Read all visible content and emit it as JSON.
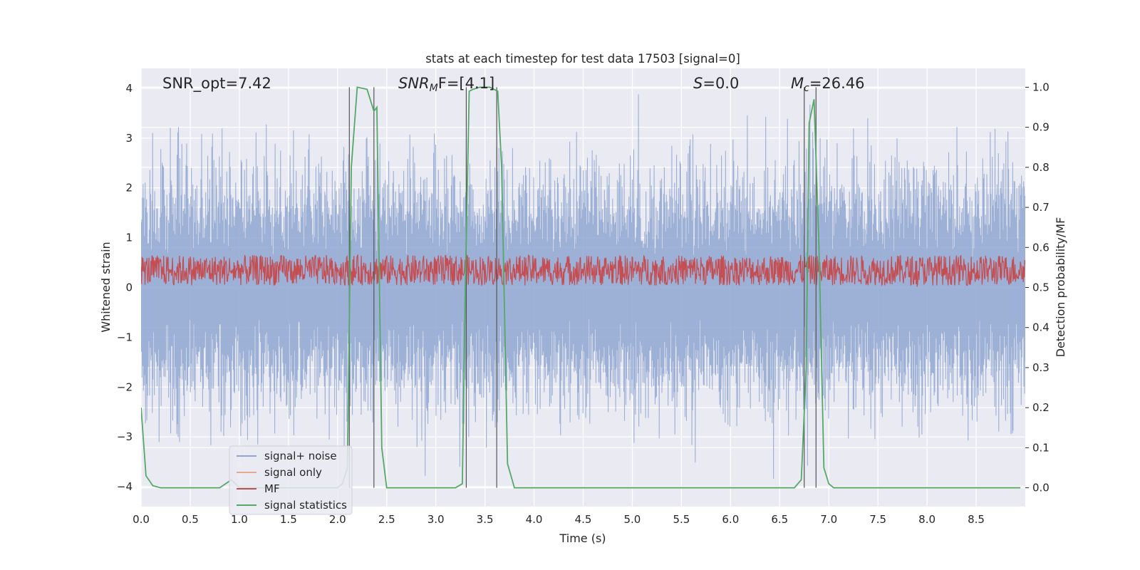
{
  "chart_data": {
    "type": "line",
    "title": "stats at each timestep for test data 17503 [signal=0]",
    "xlabel": "Time (s)",
    "ylabel": "Whitened strain",
    "ylabel_right": "Detection probability/MF",
    "xlim": [
      0,
      9
    ],
    "ylim": [
      -4.4,
      4.4
    ],
    "ylim_right": [
      -0.047,
      1.047
    ],
    "x_ticks": [
      "0.0",
      "0.5",
      "1.0",
      "1.5",
      "2.0",
      "2.5",
      "3.0",
      "3.5",
      "4.0",
      "4.5",
      "5.0",
      "5.5",
      "6.0",
      "6.5",
      "7.0",
      "7.5",
      "8.0",
      "8.5"
    ],
    "y_ticks": [
      "4",
      "3",
      "2",
      "1",
      "0",
      "−1",
      "−2",
      "−3",
      "−4"
    ],
    "y_tick_values": [
      4,
      3,
      2,
      1,
      0,
      -1,
      -2,
      -3,
      -4
    ],
    "y_ticks_right": [
      "1.0",
      "0.9",
      "0.8",
      "0.7",
      "0.6",
      "0.5",
      "0.4",
      "0.3",
      "0.2",
      "0.1",
      "0.0"
    ],
    "y_tick_values_right": [
      1.0,
      0.9,
      0.8,
      0.7,
      0.6,
      0.5,
      0.4,
      0.3,
      0.2,
      0.1,
      0.0
    ],
    "annotations": {
      "snr_opt": "SNR_opt=7.42",
      "snr_mf_base": "SNR",
      "snr_mf_sub": "M",
      "snr_mf_rest": "F=[4.1]",
      "s_label": "S",
      "s_value": "=0.0",
      "mc_base": "M",
      "mc_sub": "c",
      "mc_value": "=26.46"
    },
    "legend": {
      "position": "lower-left",
      "entries": [
        {
          "label": "signal+ noise",
          "color": "#8fa6d1"
        },
        {
          "label": "signal only",
          "color": "#e8a890"
        },
        {
          "label": "MF",
          "color": "#c44e52"
        },
        {
          "label": "signal statistics",
          "color": "#55a868"
        }
      ]
    },
    "series": [
      {
        "name": "signal+ noise",
        "color": "#8fa6d1",
        "description": "dense whitened strain noise, roughly -4 to 4",
        "amplitude_range": [
          -4,
          4
        ]
      },
      {
        "name": "MF",
        "color": "#c44e52",
        "axis": "right",
        "description": "matched filter output, oscillating between ~0.5 and ~0.58",
        "range": [
          0.5,
          0.58
        ]
      },
      {
        "name": "signal statistics",
        "color": "#55a868",
        "axis": "right",
        "x": [
          0.0,
          0.05,
          0.12,
          0.2,
          0.4,
          0.8,
          0.92,
          1.0,
          1.1,
          2.0,
          2.05,
          2.1,
          2.14,
          2.2,
          2.3,
          2.37,
          2.4,
          2.45,
          2.5,
          3.2,
          3.27,
          3.3,
          3.34,
          3.38,
          3.45,
          3.55,
          3.63,
          3.67,
          3.73,
          3.8,
          4.0,
          6.65,
          6.72,
          6.77,
          6.8,
          6.85,
          6.9,
          6.95,
          7.0,
          7.05,
          8.95
        ],
        "y": [
          0.2,
          0.03,
          0.005,
          0.0,
          0.0,
          0.0,
          0.02,
          0.0,
          0.0,
          0.0,
          0.01,
          0.05,
          0.8,
          1.0,
          0.995,
          0.94,
          0.95,
          0.1,
          0.0,
          0.0,
          0.01,
          0.5,
          0.99,
          0.995,
          1.0,
          1.0,
          0.99,
          0.8,
          0.06,
          0.0,
          0.0,
          0.0,
          0.02,
          0.3,
          0.91,
          0.97,
          0.6,
          0.05,
          0.01,
          0.0,
          0.0
        ]
      }
    ],
    "vertical_lines": [
      {
        "x": 2.12,
        "y_range": [
          0.0,
          1.0
        ]
      },
      {
        "x": 2.37,
        "y_range": [
          0.0,
          1.0
        ]
      },
      {
        "x": 3.31,
        "y_range": [
          0.0,
          1.0
        ]
      },
      {
        "x": 3.62,
        "y_range": [
          0.0,
          1.0
        ]
      },
      {
        "x": 6.75,
        "y_range": [
          0.0,
          1.0
        ]
      },
      {
        "x": 6.87,
        "y_range": [
          0.0,
          1.0
        ]
      }
    ],
    "grid": true
  }
}
